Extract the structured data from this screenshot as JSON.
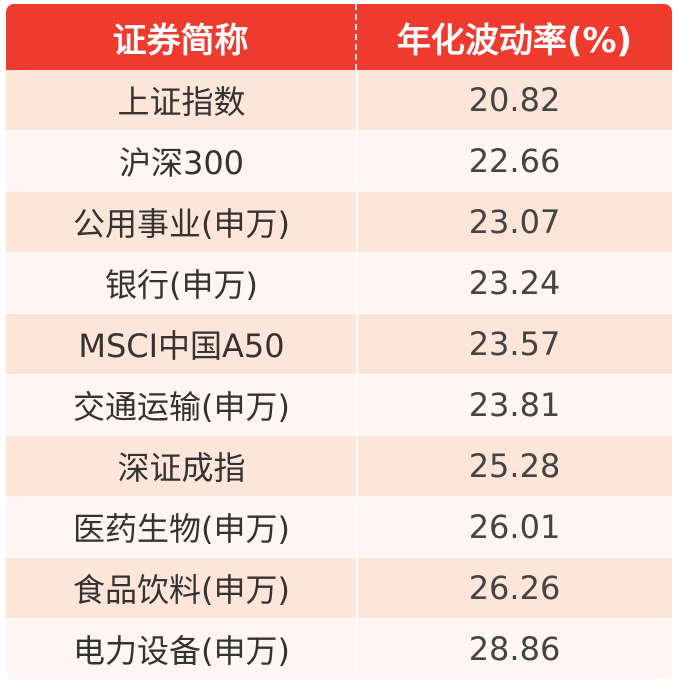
{
  "chart_data": {
    "type": "table",
    "columns": [
      "证券简称",
      "年化波动率(%)"
    ],
    "rows": [
      {
        "name": "上证指数",
        "value": "20.82"
      },
      {
        "name": "沪深300",
        "value": "22.66"
      },
      {
        "name": "公用事业(申万)",
        "value": "23.07"
      },
      {
        "name": "银行(申万)",
        "value": "23.24"
      },
      {
        "name": "MSCI中国A50",
        "value": "23.57"
      },
      {
        "name": "交通运输(申万)",
        "value": "23.81"
      },
      {
        "name": "深证成指",
        "value": "25.28"
      },
      {
        "name": "医药生物(申万)",
        "value": "26.01"
      },
      {
        "name": "食品饮料(申万)",
        "value": "26.26"
      },
      {
        "name": "电力设备(申万)",
        "value": "28.86"
      }
    ]
  },
  "colors": {
    "header_bg": "#ee3b2e",
    "row_light": "#fff6f1",
    "row_dark": "#fde5d9"
  }
}
